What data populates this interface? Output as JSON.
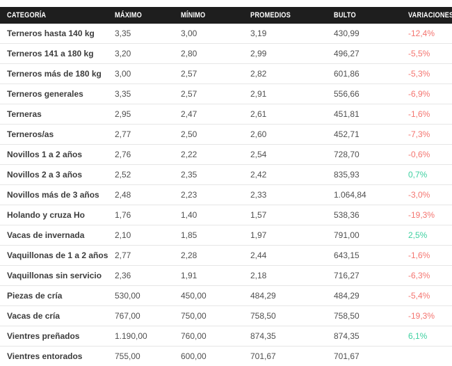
{
  "colors": {
    "header_bg": "#1e1e1e",
    "header_text": "#ffffff",
    "category_text": "#3c3c3c",
    "value_text": "#4f4f4f",
    "negative_variation": "#f4746f",
    "positive_variation": "#3ed0a0",
    "row_divider": "#e6e6e6"
  },
  "chart_data": {
    "type": "table",
    "columns": [
      "CATEGORÍA",
      "MÁXIMO",
      "MÍNIMO",
      "PROMEDIOS",
      "BULTO",
      "VARIACIONES"
    ],
    "rows": [
      {
        "categoria": "Terneros hasta 140 kg",
        "maximo": "3,35",
        "minimo": "3,00",
        "promedios": "3,19",
        "bulto": "430,99",
        "variacion": "-12,4%"
      },
      {
        "categoria": "Terneros 141 a 180 kg",
        "maximo": "3,20",
        "minimo": "2,80",
        "promedios": "2,99",
        "bulto": "496,27",
        "variacion": "-5,5%"
      },
      {
        "categoria": "Terneros más de 180 kg",
        "maximo": "3,00",
        "minimo": "2,57",
        "promedios": "2,82",
        "bulto": "601,86",
        "variacion": "-5,3%"
      },
      {
        "categoria": "Terneros generales",
        "maximo": "3,35",
        "minimo": "2,57",
        "promedios": "2,91",
        "bulto": "556,66",
        "variacion": "-6,9%"
      },
      {
        "categoria": "Terneras",
        "maximo": "2,95",
        "minimo": "2,47",
        "promedios": "2,61",
        "bulto": "451,81",
        "variacion": "-1,6%"
      },
      {
        "categoria": "Terneros/as",
        "maximo": "2,77",
        "minimo": "2,50",
        "promedios": "2,60",
        "bulto": "452,71",
        "variacion": "-7,3%"
      },
      {
        "categoria": "Novillos 1 a 2 años",
        "maximo": "2,76",
        "minimo": "2,22",
        "promedios": "2,54",
        "bulto": "728,70",
        "variacion": "-0,6%"
      },
      {
        "categoria": "Novillos 2 a 3 años",
        "maximo": "2,52",
        "minimo": "2,35",
        "promedios": "2,42",
        "bulto": "835,93",
        "variacion": "0,7%"
      },
      {
        "categoria": "Novillos más de 3 años",
        "maximo": "2,48",
        "minimo": "2,23",
        "promedios": "2,33",
        "bulto": "1.064,84",
        "variacion": "-3,0%"
      },
      {
        "categoria": "Holando y cruza Ho",
        "maximo": "1,76",
        "minimo": "1,40",
        "promedios": "1,57",
        "bulto": "538,36",
        "variacion": "-19,3%"
      },
      {
        "categoria": "Vacas de invernada",
        "maximo": "2,10",
        "minimo": "1,85",
        "promedios": "1,97",
        "bulto": "791,00",
        "variacion": "2,5%"
      },
      {
        "categoria": "Vaquillonas de 1 a 2 años",
        "maximo": "2,77",
        "minimo": "2,28",
        "promedios": "2,44",
        "bulto": "643,15",
        "variacion": "-1,6%"
      },
      {
        "categoria": "Vaquillonas sin servicio",
        "maximo": "2,36",
        "minimo": "1,91",
        "promedios": "2,18",
        "bulto": "716,27",
        "variacion": "-6,3%"
      },
      {
        "categoria": "Piezas de cría",
        "maximo": "530,00",
        "minimo": "450,00",
        "promedios": "484,29",
        "bulto": "484,29",
        "variacion": "-5,4%"
      },
      {
        "categoria": "Vacas de cría",
        "maximo": "767,00",
        "minimo": "750,00",
        "promedios": "758,50",
        "bulto": "758,50",
        "variacion": "-19,3%"
      },
      {
        "categoria": "Vientres preñados",
        "maximo": "1.190,00",
        "minimo": "760,00",
        "promedios": "874,35",
        "bulto": "874,35",
        "variacion": "6,1%"
      },
      {
        "categoria": "Vientres entorados",
        "maximo": "755,00",
        "minimo": "600,00",
        "promedios": "701,67",
        "bulto": "701,67",
        "variacion": ""
      }
    ]
  }
}
